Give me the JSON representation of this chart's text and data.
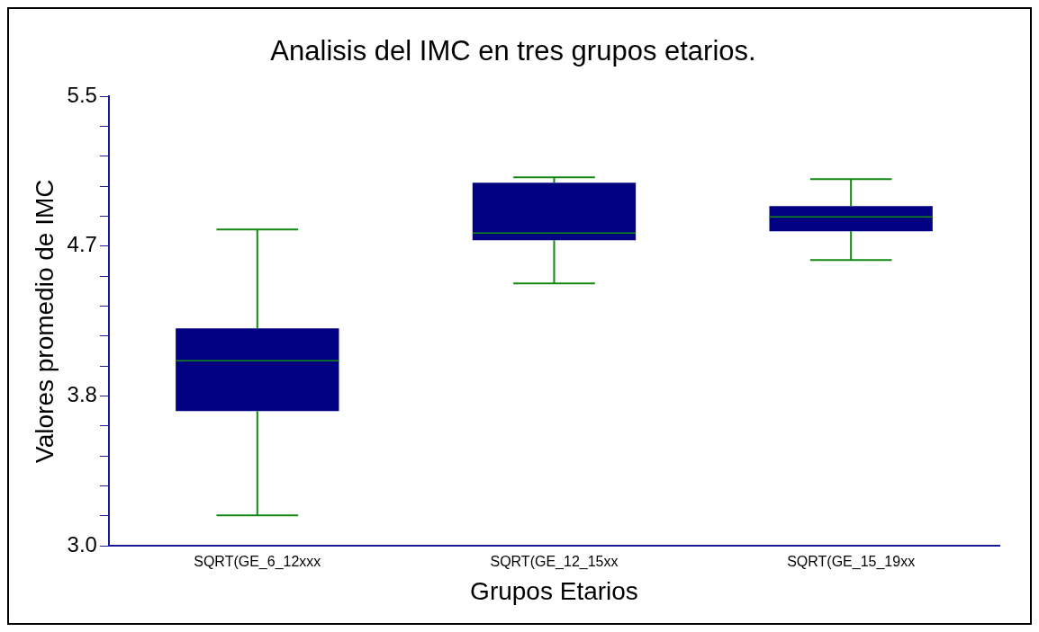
{
  "chart_data": {
    "type": "box",
    "title": "Analisis del IMC en tres grupos etarios.",
    "xlabel": "Grupos Etarios",
    "ylabel": "Valores promedio de IMC",
    "categories": [
      "SQRT(GE_6_12xxx",
      "SQRT(GE_12_15xx",
      "SQRT(GE_15_19xx"
    ],
    "series": [
      {
        "color": "#000080",
        "boxes": [
          {
            "low": 3.17,
            "q1": 3.75,
            "median": 4.03,
            "q3": 4.21,
            "high": 4.76
          },
          {
            "low": 4.46,
            "q1": 4.7,
            "median": 4.74,
            "q3": 5.02,
            "high": 5.05
          },
          {
            "low": 4.59,
            "q1": 4.75,
            "median": 4.83,
            "q3": 4.89,
            "high": 5.04
          }
        ]
      }
    ],
    "ylim": [
      3.0,
      5.5
    ],
    "yticks": [
      {
        "value": 3,
        "label": "3.0"
      },
      {
        "value": 3.1667,
        "label": null
      },
      {
        "value": 3.3333,
        "label": null
      },
      {
        "value": 3.5,
        "label": null
      },
      {
        "value": 3.6667,
        "label": null
      },
      {
        "value": 3.8333,
        "label": "3.8"
      },
      {
        "value": 4,
        "label": null
      },
      {
        "value": 4.1667,
        "label": null
      },
      {
        "value": 4.3333,
        "label": null
      },
      {
        "value": 4.5,
        "label": null
      },
      {
        "value": 4.6667,
        "label": "4.7"
      },
      {
        "value": 4.8333,
        "label": null
      },
      {
        "value": 5,
        "label": null
      },
      {
        "value": 5.1667,
        "label": null
      },
      {
        "value": 5.3333,
        "label": null
      },
      5.5
    ],
    "grid": false,
    "legend": false
  }
}
